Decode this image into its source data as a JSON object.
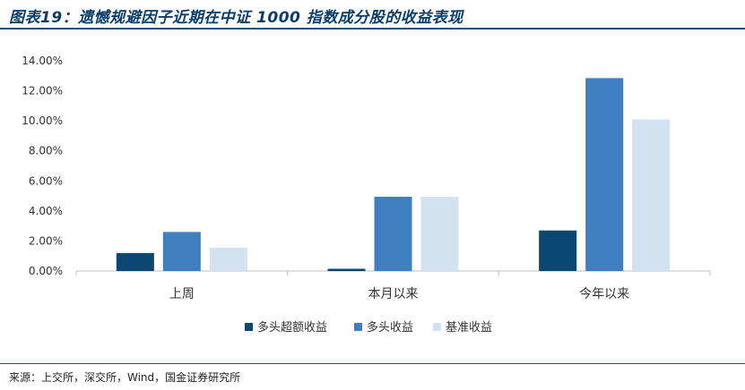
{
  "header": {
    "title": "图表19：遗憾规避因子近期在中证 1000 指数成分股的收益表现"
  },
  "footer": {
    "source": "来源：上交所，深交所，Wind，国金证券研究所"
  },
  "colors": {
    "title": "#0a3d6b",
    "rule": "#1f4f7f"
  },
  "chart_data": {
    "type": "bar",
    "categories": [
      "上周",
      "本月以来",
      "今年以来"
    ],
    "series": [
      {
        "name": "多头超额收益",
        "color": "#0b4770",
        "values": [
          1.2,
          0.15,
          2.7
        ]
      },
      {
        "name": "多头收益",
        "color": "#3f7fc1",
        "values": [
          2.6,
          4.95,
          12.85
        ]
      },
      {
        "name": "基准收益",
        "color": "#d2e2f1",
        "values": [
          1.55,
          4.95,
          10.1
        ]
      }
    ],
    "yticks": [
      "0.00%",
      "2.00%",
      "4.00%",
      "6.00%",
      "8.00%",
      "10.00%",
      "12.00%",
      "14.00%"
    ],
    "ylim": [
      0,
      14
    ],
    "unit": "%",
    "grid": false,
    "legend": "bottom"
  }
}
